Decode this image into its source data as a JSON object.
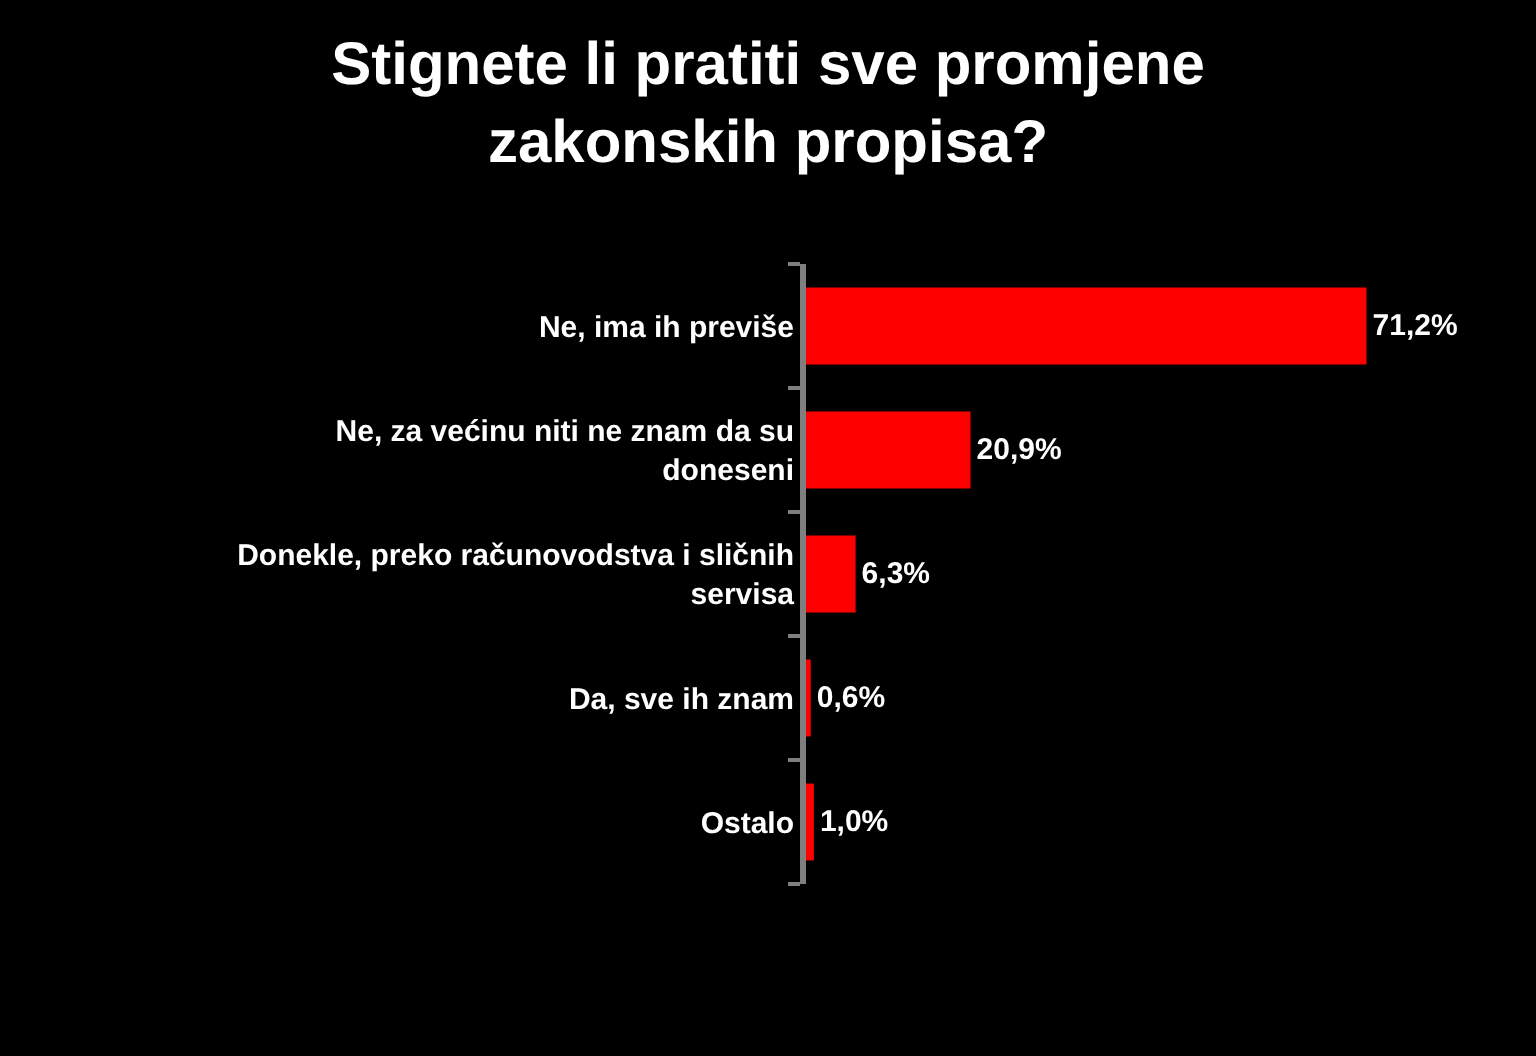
{
  "chart_data": {
    "type": "bar",
    "orientation": "horizontal",
    "title": "Stignete li pratiti sve promjene zakonskih propisa?",
    "categories": [
      "Ne, ima ih previše",
      "Ne, za većinu niti ne znam da su doneseni",
      "Donekle, preko računovodstva i sličnih servisa",
      "Da, sve ih znam",
      "Ostalo"
    ],
    "values": [
      71.2,
      20.9,
      6.3,
      0.6,
      1.0
    ],
    "value_labels": [
      "71,2%",
      "20,9%",
      "6,3%",
      "0,6%",
      "1,0%"
    ],
    "color": "#ff0000",
    "tick_labels": "y",
    "grid": false,
    "legend": false
  }
}
